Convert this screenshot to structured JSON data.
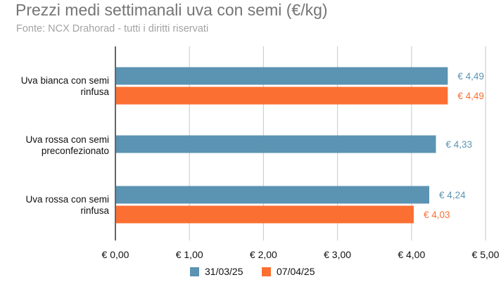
{
  "title": "Prezzi medi settimanali uva con semi (€/kg)",
  "subtitle": "Fonte: NCX Drahorad - tutti i diritti riservati",
  "colors": {
    "series_1": "#5b93b2",
    "series_2": "#fb6f33",
    "grid": "#cfcfcf",
    "axis": "#333333"
  },
  "chart_data": {
    "type": "bar",
    "orientation": "horizontal",
    "title": "Prezzi medi settimanali uva con semi (€/kg)",
    "subtitle": "Fonte: NCX Drahorad - tutti i diritti riservati",
    "categories": [
      [
        "Uva bianca con semi",
        "rinfusa"
      ],
      [
        "Uva rossa con semi",
        "preconfezionato"
      ],
      [
        "Uva rossa con semi",
        "rinfusa"
      ]
    ],
    "series": [
      {
        "name": "31/03/25",
        "values": [
          4.49,
          4.33,
          4.24
        ],
        "labels": [
          "€ 4,49",
          "€ 4,33",
          "€ 4,24"
        ]
      },
      {
        "name": "07/04/25",
        "values": [
          4.49,
          null,
          4.03
        ],
        "labels": [
          "€ 4,49",
          "",
          "€ 4,03"
        ]
      }
    ],
    "xlim": [
      0,
      5
    ],
    "xticks": [
      0,
      1,
      2,
      3,
      4,
      5
    ],
    "xtick_labels": [
      "€ 0,00",
      "€ 1,00",
      "€ 2,00",
      "€ 3,00",
      "€ 4,00",
      "€ 5,00"
    ],
    "grid": true,
    "legend_position": "bottom"
  }
}
